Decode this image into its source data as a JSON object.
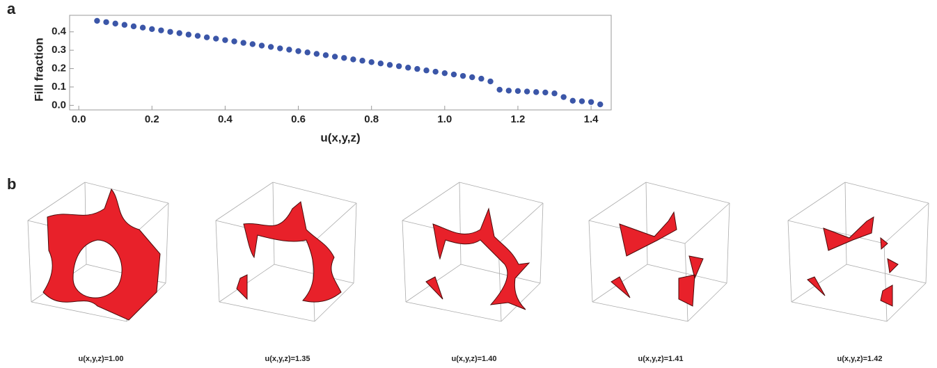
{
  "chart_data": {
    "type": "scatter",
    "xlabel": "u(x,y,z)",
    "ylabel": "Fill fraction",
    "color": "#3b56a8",
    "x": [
      0.05,
      0.075,
      0.1,
      0.125,
      0.15,
      0.175,
      0.2,
      0.225,
      0.25,
      0.275,
      0.3,
      0.325,
      0.35,
      0.375,
      0.4,
      0.425,
      0.45,
      0.475,
      0.5,
      0.525,
      0.55,
      0.575,
      0.6,
      0.625,
      0.65,
      0.675,
      0.7,
      0.725,
      0.75,
      0.775,
      0.8,
      0.825,
      0.85,
      0.875,
      0.9,
      0.925,
      0.95,
      0.975,
      1.0,
      1.025,
      1.05,
      1.075,
      1.1,
      1.125,
      1.15,
      1.175,
      1.2,
      1.225,
      1.25,
      1.275,
      1.3,
      1.325,
      1.35,
      1.375,
      1.4,
      1.425
    ],
    "values": [
      0.46,
      0.453,
      0.445,
      0.438,
      0.43,
      0.423,
      0.415,
      0.408,
      0.4,
      0.393,
      0.385,
      0.378,
      0.37,
      0.363,
      0.355,
      0.348,
      0.34,
      0.333,
      0.325,
      0.318,
      0.31,
      0.303,
      0.295,
      0.288,
      0.28,
      0.273,
      0.265,
      0.258,
      0.25,
      0.243,
      0.235,
      0.228,
      0.22,
      0.213,
      0.205,
      0.198,
      0.19,
      0.183,
      0.175,
      0.168,
      0.16,
      0.153,
      0.145,
      0.13,
      0.085,
      0.08,
      0.078,
      0.075,
      0.072,
      0.07,
      0.065,
      0.045,
      0.025,
      0.022,
      0.018,
      0.005
    ],
    "xlim": [
      -0.025,
      1.455
    ],
    "ylim": [
      -0.025,
      0.49
    ],
    "xticks": [
      {
        "value": 0,
        "label": "0.0"
      },
      0.2,
      0.4,
      0.6,
      0.8,
      {
        "value": 1,
        "label": "1.0"
      },
      1.2,
      1.4
    ],
    "yticks": [
      {
        "value": 0,
        "label": "0.0"
      },
      0.1,
      0.2,
      0.3,
      0.4
    ]
  },
  "panel_labels": [
    "a",
    "b"
  ],
  "renderings": [
    {
      "caption": "u(x,y,z)=1.00"
    },
    {
      "caption": "u(x,y,z)=1.35"
    },
    {
      "caption": "u(x,y,z)=1.40"
    },
    {
      "caption": "u(x,y,z)=1.41"
    },
    {
      "caption": "u(x,y,z)=1.42"
    }
  ]
}
